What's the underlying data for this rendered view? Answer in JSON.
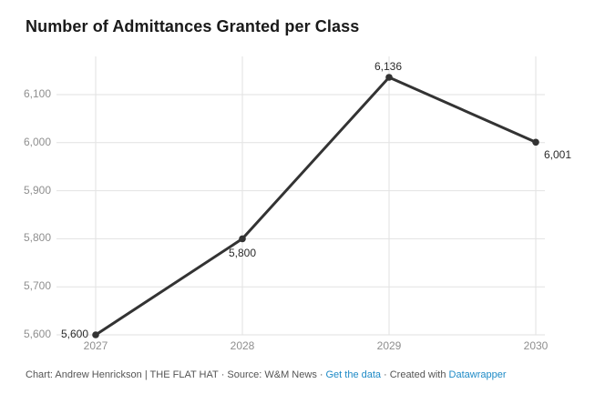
{
  "title": "Number of Admittances Granted per Class",
  "footer": {
    "credit": "Chart: Andrew Henrickson | THE FLAT HAT",
    "separator": "·",
    "source": "Source: W&M News",
    "get_data_link": "Get the data",
    "created_with": "Created with",
    "datawrapper_link": "Datawrapper"
  },
  "chart_data": {
    "type": "line",
    "title": "Number of Admittances Granted per Class",
    "categories": [
      "2027",
      "2028",
      "2029",
      "2030"
    ],
    "values": [
      5600,
      5800,
      6136,
      6001
    ],
    "data_labels": [
      "5,600",
      "5,800",
      "6,136",
      "6,001"
    ],
    "y_ticks": [
      {
        "value": 6100,
        "label": "6,100"
      },
      {
        "value": 6000,
        "label": "6,000"
      },
      {
        "value": 5900,
        "label": "5,900"
      },
      {
        "value": 5800,
        "label": "5,800"
      },
      {
        "value": 5700,
        "label": "5,700"
      },
      {
        "value": 5600,
        "label": "5,600"
      }
    ],
    "ylim": [
      5600,
      6100
    ],
    "xlabel": "",
    "ylabel": "",
    "grid": true,
    "legend": "none",
    "colors": {
      "background": "#ffffff",
      "title": "#1a1a1a",
      "line": "#333333",
      "point": "#333333",
      "gridline": "#e2e2e2",
      "axis_label": "#8f8f8f",
      "data_label": "#2b2b2b",
      "footer_text": "#545454",
      "link": "#1e8ac6"
    }
  }
}
